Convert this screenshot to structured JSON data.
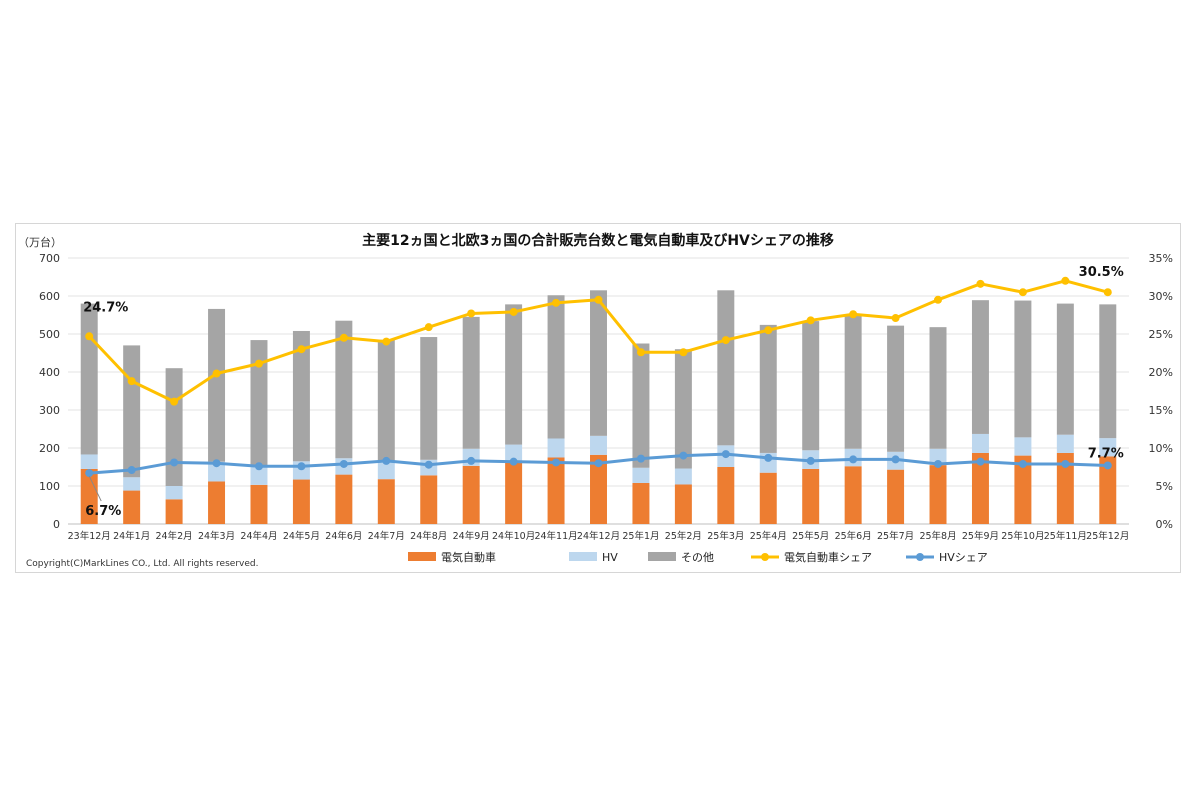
{
  "chart_data": {
    "type": "bar",
    "title": "主要12ヵ国と北欧3ヵ国の合計販売台数と電気自動車及びHVシェアの推移",
    "y_unit_label": "（万台）",
    "ylim": [
      0,
      700
    ],
    "yticks": [
      "0",
      "100",
      "200",
      "300",
      "400",
      "500",
      "600",
      "700"
    ],
    "y2lim": [
      0,
      35
    ],
    "y2ticks": [
      "0%",
      "5%",
      "10%",
      "15%",
      "20%",
      "25%",
      "30%",
      "35%"
    ],
    "grid": true,
    "legend_position": "bottom",
    "categories": [
      "23年12月",
      "24年1月",
      "24年2月",
      "24年3月",
      "24年4月",
      "24年5月",
      "24年6月",
      "24年7月",
      "24年8月",
      "24年9月",
      "24年10月",
      "24年11月",
      "24年12月",
      "25年1月",
      "25年2月",
      "25年3月",
      "25年4月",
      "25年5月",
      "25年6月",
      "25年7月",
      "25年8月",
      "25年9月",
      "25年10月",
      "25年11月",
      "25年12月"
    ],
    "series": [
      {
        "name": "電気自動車",
        "kind": "bar",
        "color": "#ED7D31",
        "values": [
          145,
          88,
          65,
          112,
          103,
          117,
          130,
          118,
          128,
          153,
          162,
          175,
          182,
          108,
          104,
          150,
          135,
          145,
          152,
          143,
          155,
          187,
          180,
          187,
          178
        ]
      },
      {
        "name": "HV",
        "kind": "bar",
        "color": "#BDD7EE",
        "values": [
          38,
          35,
          35,
          52,
          52,
          48,
          43,
          47,
          41,
          45,
          47,
          50,
          50,
          40,
          42,
          57,
          52,
          49,
          46,
          47,
          43,
          50,
          48,
          48,
          48
        ]
      },
      {
        "name": "その他",
        "kind": "bar",
        "color": "#A5A5A5",
        "values": [
          397,
          347,
          310,
          402,
          329,
          343,
          362,
          320,
          323,
          347,
          369,
          377,
          383,
          327,
          314,
          408,
          337,
          340,
          352,
          332,
          320,
          352,
          360,
          345,
          352
        ]
      },
      {
        "name": "電気自動車シェア",
        "kind": "line",
        "axis": "right",
        "color": "#FFC000",
        "values": [
          24.7,
          18.8,
          16.1,
          19.8,
          21.1,
          23.0,
          24.5,
          24.0,
          25.9,
          27.7,
          27.9,
          29.1,
          29.5,
          22.6,
          22.6,
          24.2,
          25.5,
          26.8,
          27.6,
          27.1,
          29.5,
          31.6,
          30.5,
          32.0,
          30.5
        ]
      },
      {
        "name": "HVシェア",
        "kind": "line",
        "axis": "right",
        "color": "#5B9BD5",
        "values": [
          6.7,
          7.1,
          8.1,
          8.0,
          7.6,
          7.6,
          7.9,
          8.3,
          7.8,
          8.3,
          8.2,
          8.1,
          8.0,
          8.6,
          9.0,
          9.2,
          8.7,
          8.3,
          8.5,
          8.5,
          7.9,
          8.2,
          7.9,
          7.9,
          7.7
        ]
      }
    ],
    "annotations": [
      {
        "text": "24.7%",
        "series": "電気自動車シェア",
        "index": 0
      },
      {
        "text": "6.7%",
        "series": "HVシェア",
        "index": 0
      },
      {
        "text": "30.5%",
        "series": "電気自動車シェア",
        "index": 24
      },
      {
        "text": "7.7%",
        "series": "HVシェア",
        "index": 24
      }
    ]
  },
  "copyright": "Copyright(C)MarkLines CO., Ltd. All rights reserved."
}
